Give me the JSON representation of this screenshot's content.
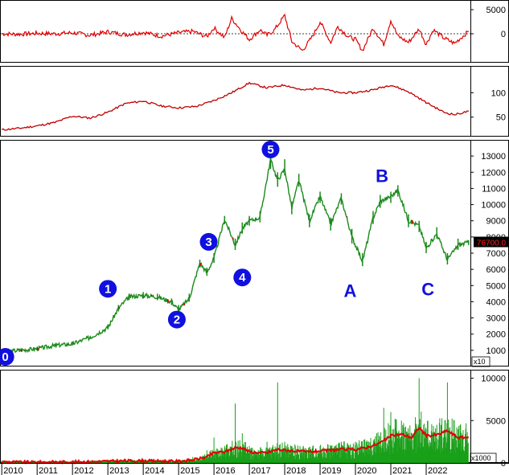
{
  "chart_data": [
    {
      "id": "oscillator",
      "type": "line",
      "y_ticks": [
        "5000",
        "0"
      ],
      "ylim": [
        -6000,
        7000
      ],
      "color": "#e00000",
      "series": [
        {
          "x": [
            2010.0,
            2010.5,
            2011.0,
            2011.5,
            2012.0,
            2012.5,
            2013.0,
            2013.5,
            2014.0,
            2014.5,
            2015.0,
            2015.4,
            2015.8,
            2016.0,
            2016.3,
            2016.5,
            2016.8,
            2017.0,
            2017.3,
            2017.5,
            2017.7,
            2018.0,
            2018.2,
            2018.5,
            2018.8,
            2019.0,
            2019.3,
            2019.5,
            2019.8,
            2020.0,
            2020.2,
            2020.5,
            2020.8,
            2021.0,
            2021.2,
            2021.5,
            2021.8,
            2022.0,
            2022.2,
            2022.5,
            2022.8,
            2023.2
          ],
          "y": [
            0,
            -100,
            100,
            0,
            200,
            -300,
            400,
            -200,
            300,
            -500,
            200,
            500,
            -600,
            1200,
            -800,
            3200,
            400,
            -1200,
            800,
            -300,
            700,
            3800,
            -1600,
            -3500,
            -400,
            2500,
            -1800,
            1500,
            -600,
            -1200,
            -3500,
            1200,
            -2200,
            2800,
            -500,
            -1800,
            1000,
            -2200,
            800,
            -900,
            -2000,
            500
          ]
        }
      ]
    },
    {
      "id": "momentum",
      "type": "line",
      "y_ticks": [
        "100",
        "50"
      ],
      "ylim": [
        10,
        155
      ],
      "color": "#c00000",
      "series": [
        {
          "x": [
            2010.0,
            2010.5,
            2011.0,
            2011.5,
            2012.0,
            2012.5,
            2013.0,
            2013.5,
            2014.0,
            2014.5,
            2015.0,
            2015.5,
            2016.0,
            2016.5,
            2017.0,
            2017.5,
            2018.0,
            2018.5,
            2019.0,
            2019.5,
            2020.0,
            2020.5,
            2021.0,
            2021.5,
            2022.0,
            2022.5,
            2022.8,
            2023.2
          ],
          "y": [
            24,
            27,
            32,
            39,
            52,
            48,
            60,
            78,
            83,
            73,
            69,
            72,
            84,
            100,
            120,
            110,
            116,
            105,
            110,
            100,
            100,
            106,
            116,
            102,
            80,
            60,
            55,
            62
          ]
        }
      ]
    },
    {
      "id": "price",
      "type": "line",
      "y_ticks": [
        "13000",
        "12000",
        "11000",
        "10000",
        "9000",
        "8000",
        "7000",
        "6000",
        "5000",
        "4000",
        "3000",
        "2000",
        "1000"
      ],
      "ylim": [
        0,
        14000
      ],
      "multiplier": "x10",
      "last_price_label": "76700.0",
      "color": "#1a8a1a",
      "series": [
        {
          "x": [
            2010.0,
            2010.5,
            2011.0,
            2011.5,
            2012.0,
            2012.5,
            2013.0,
            2013.3,
            2013.6,
            2014.0,
            2014.4,
            2014.8,
            2015.0,
            2015.3,
            2015.6,
            2015.8,
            2016.0,
            2016.3,
            2016.6,
            2016.8,
            2017.0,
            2017.3,
            2017.6,
            2017.8,
            2018.0,
            2018.2,
            2018.4,
            2018.7,
            2019.0,
            2019.3,
            2019.6,
            2019.9,
            2020.2,
            2020.5,
            2020.7,
            2021.0,
            2021.2,
            2021.5,
            2021.8,
            2022.0,
            2022.3,
            2022.6,
            2022.9,
            2023.2
          ],
          "y": [
            900,
            1000,
            1100,
            1300,
            1400,
            1800,
            2400,
            3600,
            4300,
            4400,
            4300,
            4000,
            3500,
            4200,
            6400,
            5800,
            6700,
            9100,
            7500,
            8500,
            9000,
            9200,
            12800,
            11500,
            12200,
            9800,
            11500,
            9000,
            10500,
            8800,
            10400,
            8000,
            6500,
            9200,
            10200,
            10500,
            10900,
            9000,
            8700,
            7300,
            8200,
            6600,
            7500,
            7670
          ],
          "highs": [
            1000,
            1100,
            1200,
            1400,
            1500,
            1900,
            2600,
            3800,
            4500,
            4600,
            4500,
            4200,
            3800,
            4500,
            6600,
            6100,
            7000,
            9300,
            7900,
            8900,
            9300,
            9600,
            13100,
            12000,
            12800,
            10200,
            11900,
            9400,
            10800,
            9200,
            10700,
            8500,
            7000,
            9600,
            10600,
            10800,
            11200,
            9400,
            9000,
            7700,
            8600,
            7000,
            7900,
            7800
          ],
          "lows": [
            800,
            900,
            1000,
            1200,
            1300,
            1700,
            2300,
            3400,
            4100,
            4200,
            4100,
            3800,
            3300,
            4000,
            6100,
            5600,
            6400,
            8800,
            7200,
            8200,
            8700,
            8900,
            12200,
            11100,
            11800,
            9400,
            11100,
            8600,
            10100,
            8400,
            10000,
            7600,
            6200,
            8800,
            9800,
            10100,
            10500,
            8600,
            8300,
            7000,
            7900,
            6300,
            7200,
            7500
          ]
        }
      ]
    },
    {
      "id": "volume",
      "type": "bar",
      "y_ticks": [
        "10000",
        "5000",
        "0"
      ],
      "ylim": [
        0,
        11000
      ],
      "multiplier": "x1000",
      "bar_color": "#1aa01a",
      "ma_color": "#e00000",
      "series": [
        {
          "x": [
            2010.0,
            2010.5,
            2011.0,
            2011.5,
            2012.0,
            2012.5,
            2013.0,
            2013.5,
            2014.0,
            2014.5,
            2015.0,
            2015.4,
            2015.8,
            2016.0,
            2016.3,
            2016.6,
            2016.8,
            2017.0,
            2017.3,
            2017.5,
            2017.8,
            2018.0,
            2018.3,
            2018.6,
            2019.0,
            2019.3,
            2019.6,
            2020.0,
            2020.3,
            2020.6,
            2020.8,
            2021.0,
            2021.3,
            2021.6,
            2021.8,
            2022.0,
            2022.3,
            2022.6,
            2022.9,
            2023.2
          ],
          "values": [
            300,
            150,
            200,
            250,
            200,
            300,
            400,
            500,
            450,
            400,
            350,
            700,
            1500,
            3000,
            2000,
            7000,
            3500,
            2000,
            1500,
            2500,
            9500,
            2500,
            2000,
            1500,
            2000,
            2000,
            2500,
            2500,
            2500,
            3500,
            6500,
            6000,
            5000,
            3500,
            10000,
            4000,
            4500,
            9500,
            4000,
            5500
          ],
          "ma": [
            150,
            100,
            100,
            120,
            120,
            150,
            200,
            250,
            250,
            220,
            200,
            350,
            700,
            1200,
            1300,
            1800,
            1800,
            1300,
            1200,
            1200,
            1600,
            1500,
            1400,
            1300,
            1400,
            1500,
            1600,
            1600,
            1800,
            2200,
            2600,
            3200,
            3400,
            3000,
            4200,
            3200,
            3300,
            3800,
            3000,
            3000
          ]
        }
      ]
    }
  ],
  "x_axis": {
    "years": [
      "2010",
      "2011",
      "2012",
      "2013",
      "2014",
      "2015",
      "2016",
      "2017",
      "2018",
      "2019",
      "2020",
      "2021",
      "2022"
    ]
  },
  "wave_markers": [
    {
      "label": "0",
      "x": 2010.1,
      "y": 200,
      "style": "circle"
    },
    {
      "label": "1",
      "x": 2013.0,
      "y": 4800,
      "style": "circle"
    },
    {
      "label": "2",
      "x": 2014.95,
      "y": 2900,
      "style": "circle"
    },
    {
      "label": "3",
      "x": 2015.85,
      "y": 7700,
      "style": "circle"
    },
    {
      "label": "4",
      "x": 2016.8,
      "y": 5500,
      "style": "circle"
    },
    {
      "label": "5",
      "x": 2017.6,
      "y": 13800,
      "style": "circle"
    },
    {
      "label": "A",
      "x": 2019.85,
      "y": 4700,
      "style": "letter"
    },
    {
      "label": "B",
      "x": 2020.75,
      "y": 11800,
      "style": "letter"
    },
    {
      "label": "C",
      "x": 2022.05,
      "y": 4800,
      "style": "letter"
    }
  ]
}
